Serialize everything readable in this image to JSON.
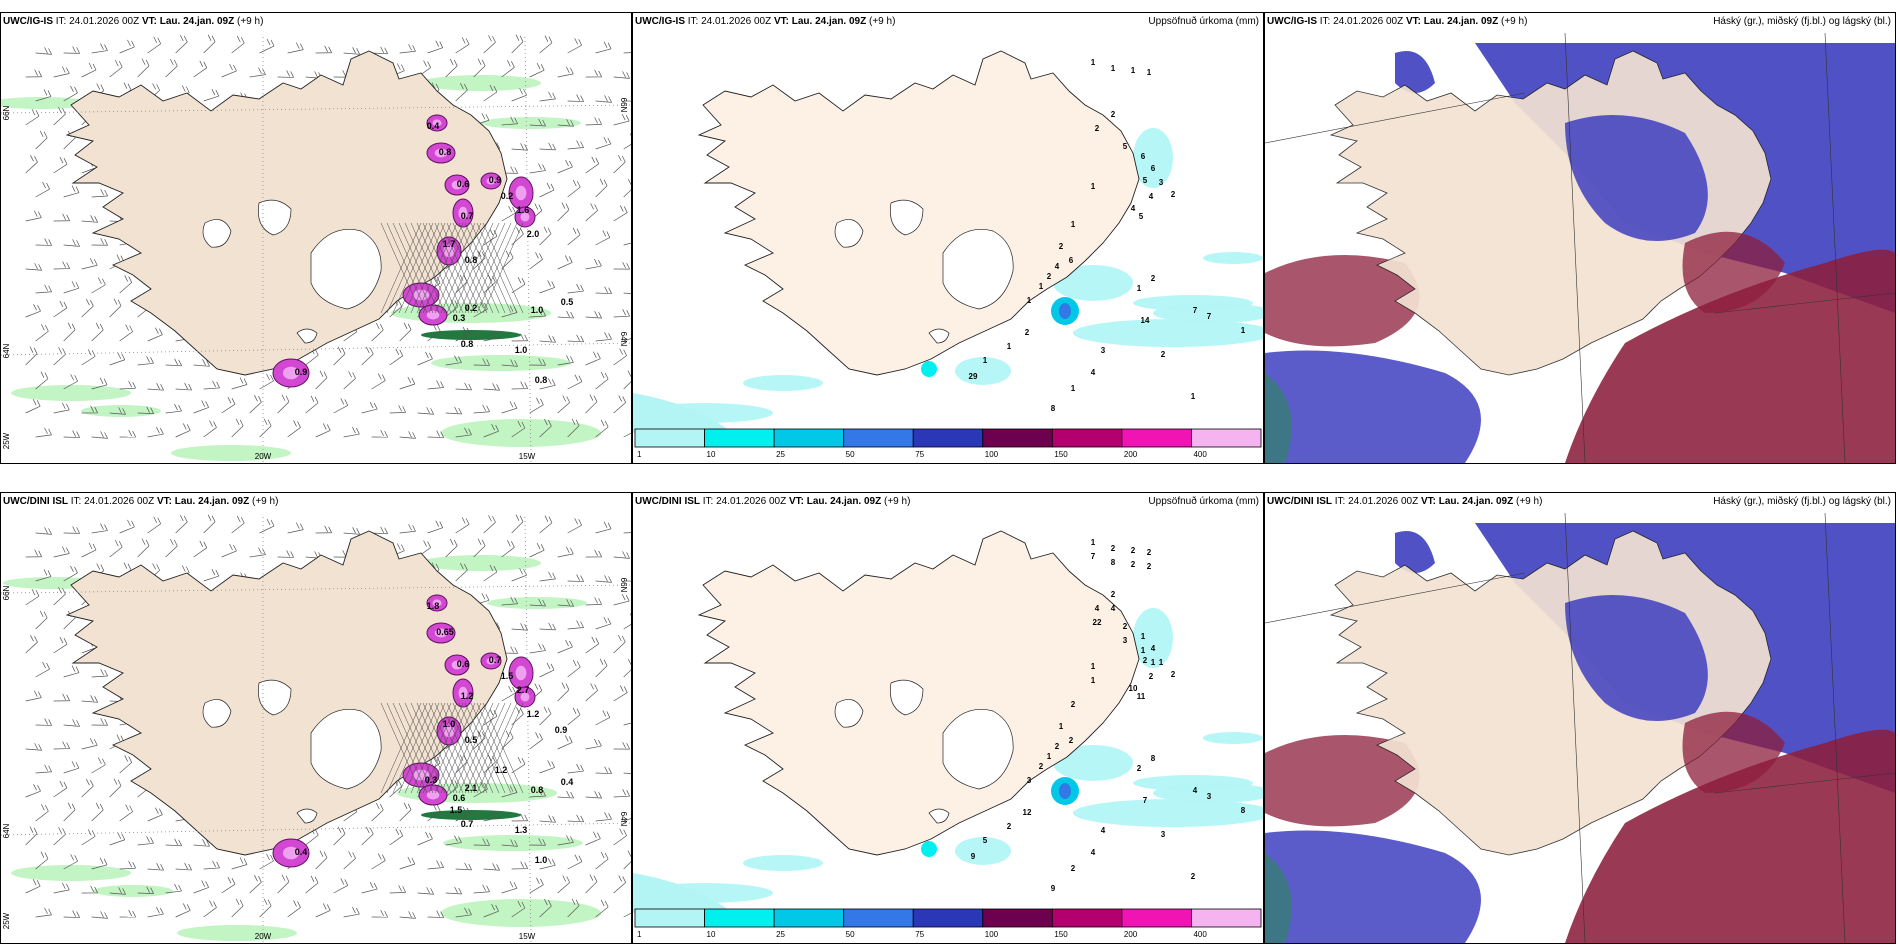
{
  "rows": [
    {
      "model": "UWC/IG-IS",
      "panels": [
        {
          "kind": "wind",
          "model": "UWC/IG-IS",
          "it": "IT: 24.01.2026 00Z",
          "vt": "VT: Lau. 24.jan. 09Z",
          "lead": "(+9 h)",
          "right": "",
          "values": [
            "0.8",
            "0.6",
            "1.0",
            "0.5",
            "0.9",
            "0.3",
            "0.2",
            "1.7",
            "0.8",
            "0.4",
            "0.7",
            "0.2",
            "1.6",
            "2.0",
            "1.0",
            "0.8",
            "0.8",
            "0.9"
          ]
        },
        {
          "kind": "precip",
          "model": "UWC/IG-IS",
          "it": "IT: 24.01.2026 00Z",
          "vt": "VT: Lau. 24.jan. 09Z",
          "lead": "(+9 h)",
          "right": "Uppsöfnuð úrkoma (mm)",
          "values": [
            "1",
            "1",
            "1",
            "1",
            "2",
            "2",
            "5",
            "1",
            "6",
            "6",
            "5",
            "4",
            "3",
            "2",
            "4",
            "5",
            "1",
            "2",
            "2",
            "4",
            "6",
            "1",
            "1",
            "2",
            "1",
            "7",
            "7",
            "14",
            "29",
            "2",
            "1",
            "1",
            "2",
            "1",
            "1",
            "8",
            "1",
            "4",
            "3"
          ]
        },
        {
          "kind": "cloud",
          "model": "UWC/IG-IS",
          "it": "IT: 24.01.2026 00Z",
          "vt": "VT: Lau. 24.jan. 09Z",
          "lead": "(+9 h)",
          "right": "Háský (gr.), miðský (fj.bl.) og lágský (bl.)",
          "values": []
        }
      ]
    },
    {
      "model": "UWC/DINI ISL",
      "panels": [
        {
          "kind": "wind",
          "model": "UWC/DINI ISL",
          "it": "IT: 24.01.2026 00Z",
          "vt": "VT: Lau. 24.jan. 09Z",
          "lead": "(+9 h)",
          "right": "",
          "values": [
            "0.65",
            "0.6",
            "0.8",
            "0.4",
            "0.7",
            "0.6",
            "2.1",
            "1.0",
            "0.5",
            "1.8",
            "1.2",
            "1.5",
            "2.7",
            "1.2",
            "1.3",
            "1.0",
            "0.7",
            "0.4",
            "0.9",
            "1.2",
            "0.3",
            "1.5"
          ]
        },
        {
          "kind": "precip",
          "model": "UWC/DINI ISL",
          "it": "IT: 24.01.2026 00Z",
          "vt": "VT: Lau. 24.jan. 09Z",
          "lead": "(+9 h)",
          "right": "Uppsöfnuð úrkoma (mm)",
          "values": [
            "1",
            "2",
            "2",
            "2",
            "4",
            "2",
            "2",
            "1",
            "1",
            "4",
            "2",
            "2",
            "1",
            "2",
            "10",
            "11",
            "2",
            "1",
            "1",
            "2",
            "2",
            "2",
            "3",
            "8",
            "2",
            "4",
            "3",
            "7",
            "9",
            "12",
            "2",
            "5",
            "3",
            "2",
            "8",
            "9",
            "2",
            "4",
            "4",
            "7",
            "8",
            "2",
            "2",
            "22",
            "4",
            "3",
            "1",
            "1",
            "1"
          ]
        },
        {
          "kind": "cloud",
          "model": "UWC/DINI ISL",
          "it": "IT: 24.01.2026 00Z",
          "vt": "VT: Lau. 24.jan. 09Z",
          "lead": "(+9 h)",
          "right": "Háský (gr.), miðský (fj.bl.) og lágský (bl.)",
          "values": []
        }
      ]
    }
  ],
  "axes": {
    "lat_top": "66N",
    "lat_bottom": "64N",
    "lat_right_top": "66N",
    "lat_right_bottom": "64N",
    "lon_left": "20W",
    "lon_right": "15W",
    "corner": "25W"
  },
  "legend": {
    "ticks": [
      "1",
      "10",
      "25",
      "50",
      "75",
      "100",
      "150",
      "200",
      "400"
    ],
    "colors": [
      "#b3f5f5",
      "#00f0f0",
      "#00c8e6",
      "#3278e6",
      "#2a38b8",
      "#6e0050",
      "#b4006e",
      "#f014b4",
      "#f5b4f0"
    ]
  },
  "colors": {
    "land": "#f2e2d2",
    "precip_land": "#fdf1e6",
    "green": "#b8f2b8",
    "magenta": "#d248d2",
    "cloud_high": "#3e3ec0",
    "cloud_mid": "#8c1e3c",
    "cloud_low": "#5a8cf0"
  }
}
